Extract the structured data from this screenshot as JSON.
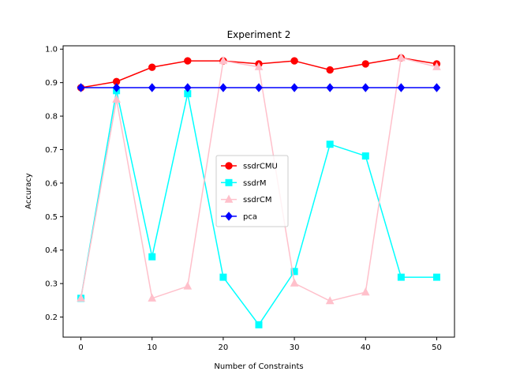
{
  "chart_data": {
    "type": "line",
    "title": "Experiment 2",
    "xlabel": "Number of Constraints",
    "ylabel": "Accuracy",
    "x": [
      0,
      5,
      10,
      15,
      20,
      25,
      30,
      35,
      40,
      45,
      50
    ],
    "xlim": [
      -2.5,
      52.5
    ],
    "ylim": [
      0.14,
      1.01
    ],
    "xticks": [
      0,
      10,
      20,
      30,
      40,
      50
    ],
    "yticks": [
      0.2,
      0.3,
      0.4,
      0.5,
      0.6,
      0.7,
      0.8,
      0.9,
      1.0
    ],
    "ytick_labels": [
      "0.2",
      "0.3",
      "0.4",
      "0.5",
      "0.6",
      "0.7",
      "0.8",
      "0.9",
      "1.0"
    ],
    "grid": false,
    "legend_position": "center-right",
    "series": [
      {
        "name": "ssdrCMU",
        "color": "#ff0000",
        "marker": "circle",
        "values": [
          0.885,
          0.903,
          0.946,
          0.965,
          0.965,
          0.956,
          0.965,
          0.938,
          0.956,
          0.974,
          0.956
        ]
      },
      {
        "name": "ssdrM",
        "color": "#00ffff",
        "marker": "square",
        "values": [
          0.256,
          0.876,
          0.38,
          0.867,
          0.319,
          0.177,
          0.336,
          0.716,
          0.681,
          0.319,
          0.319
        ]
      },
      {
        "name": "ssdrCM",
        "color": "#ffc0cb",
        "marker": "triangle",
        "values": [
          0.256,
          0.85,
          0.256,
          0.292,
          0.965,
          0.947,
          0.301,
          0.248,
          0.274,
          0.974,
          0.947
        ]
      },
      {
        "name": "pca",
        "color": "#0000ff",
        "marker": "diamond",
        "values": [
          0.885,
          0.885,
          0.885,
          0.885,
          0.885,
          0.885,
          0.885,
          0.885,
          0.885,
          0.885,
          0.885
        ]
      }
    ]
  }
}
